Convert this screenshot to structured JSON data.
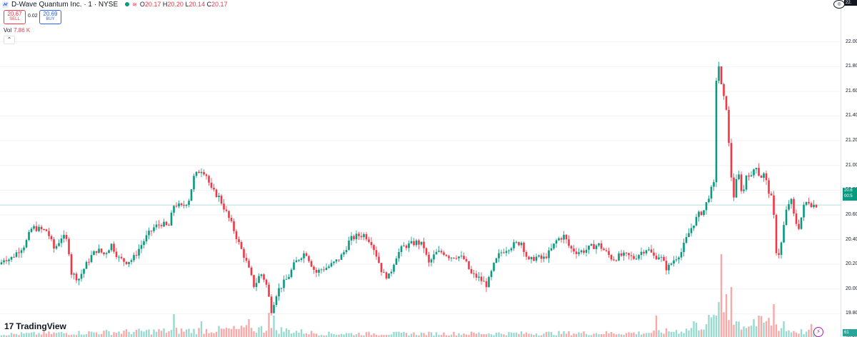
{
  "header": {
    "symbol_title": "D-Wave Quantum Inc. · 1 · NYSE",
    "ohlc": {
      "o_label": "O",
      "o_value": "20.17",
      "h_label": "H",
      "h_value": "20.20",
      "l_label": "L",
      "l_value": "20.14",
      "c_label": "C",
      "c_value": "20.17"
    }
  },
  "trade": {
    "sell_price": "20.67",
    "sell_label": "SELL",
    "spread": "0.02",
    "buy_price": "20.69",
    "buy_label": "BUY"
  },
  "volume": {
    "label": "Vol",
    "value": "7.86 K"
  },
  "collapse_glyph": "⌃",
  "logo": {
    "mark": "17",
    "text": "TradingView"
  },
  "axis": {
    "labels": [
      "22.00",
      "21.80",
      "21.60",
      "21.40",
      "21.20",
      "21.00",
      "20.80",
      "20.60",
      "20.40",
      "20.20",
      "20.00",
      "19.80",
      "19.60"
    ]
  },
  "last_price_tag": {
    "price": "20.6",
    "countdown": "00:5"
  },
  "volume_tag": "61",
  "top_right_tag": "22.",
  "colors": {
    "up": "#089981",
    "down": "#f23645",
    "vol_up": "#9ad9cf",
    "vol_down": "#f7a9a8",
    "grid": "#f0f3fa",
    "price_line": "#b2dfdb"
  },
  "chart_data": {
    "type": "candlestick",
    "ylim": [
      19.6,
      22.05
    ],
    "last_price": 20.68,
    "close_path": [
      [
        0,
        20.2
      ],
      [
        6,
        20.25
      ],
      [
        14,
        20.24
      ],
      [
        24,
        20.3
      ],
      [
        35,
        20.36
      ],
      [
        45,
        20.5
      ],
      [
        57,
        20.48
      ],
      [
        66,
        20.47
      ],
      [
        76,
        20.32
      ],
      [
        87,
        20.43
      ],
      [
        95,
        20.38
      ],
      [
        100,
        20.13
      ],
      [
        110,
        20.08
      ],
      [
        118,
        20.17
      ],
      [
        127,
        20.26
      ],
      [
        136,
        20.32
      ],
      [
        146,
        20.28
      ],
      [
        156,
        20.36
      ],
      [
        166,
        20.25
      ],
      [
        176,
        20.22
      ],
      [
        186,
        20.24
      ],
      [
        196,
        20.34
      ],
      [
        206,
        20.43
      ],
      [
        216,
        20.5
      ],
      [
        226,
        20.53
      ],
      [
        236,
        20.5
      ],
      [
        244,
        20.69
      ],
      [
        255,
        20.66
      ],
      [
        265,
        20.73
      ],
      [
        271,
        20.9
      ],
      [
        281,
        20.97
      ],
      [
        288,
        20.94
      ],
      [
        296,
        20.8
      ],
      [
        306,
        20.75
      ],
      [
        316,
        20.63
      ],
      [
        326,
        20.5
      ],
      [
        335,
        20.36
      ],
      [
        343,
        20.25
      ],
      [
        350,
        20.13
      ],
      [
        356,
        20.02
      ],
      [
        365,
        20.13
      ],
      [
        372,
        20.06
      ],
      [
        380,
        19.83
      ],
      [
        388,
        19.98
      ],
      [
        396,
        20.04
      ],
      [
        404,
        20.1
      ],
      [
        412,
        20.2
      ],
      [
        420,
        20.26
      ],
      [
        428,
        20.3
      ],
      [
        436,
        20.2
      ],
      [
        442,
        20.13
      ],
      [
        450,
        20.16
      ],
      [
        460,
        20.18
      ],
      [
        470,
        20.22
      ],
      [
        480,
        20.28
      ],
      [
        490,
        20.4
      ],
      [
        500,
        20.43
      ],
      [
        510,
        20.44
      ],
      [
        520,
        20.38
      ],
      [
        528,
        20.26
      ],
      [
        536,
        20.12
      ],
      [
        545,
        20.1
      ],
      [
        554,
        20.26
      ],
      [
        564,
        20.34
      ],
      [
        574,
        20.36
      ],
      [
        584,
        20.38
      ],
      [
        593,
        20.35
      ],
      [
        600,
        20.2
      ],
      [
        610,
        20.29
      ],
      [
        620,
        20.3
      ],
      [
        630,
        20.26
      ],
      [
        640,
        20.27
      ],
      [
        650,
        20.24
      ],
      [
        660,
        20.12
      ],
      [
        670,
        20.09
      ],
      [
        682,
        20.03
      ],
      [
        692,
        20.2
      ],
      [
        700,
        20.29
      ],
      [
        710,
        20.33
      ],
      [
        720,
        20.36
      ],
      [
        730,
        20.38
      ],
      [
        740,
        20.22
      ],
      [
        750,
        20.26
      ],
      [
        760,
        20.24
      ],
      [
        770,
        20.3
      ],
      [
        780,
        20.4
      ],
      [
        790,
        20.43
      ],
      [
        798,
        20.33
      ],
      [
        808,
        20.3
      ],
      [
        818,
        20.31
      ],
      [
        828,
        20.34
      ],
      [
        838,
        20.36
      ],
      [
        848,
        20.3
      ],
      [
        858,
        20.24
      ],
      [
        868,
        20.27
      ],
      [
        878,
        20.27
      ],
      [
        888,
        20.25
      ],
      [
        898,
        20.3
      ],
      [
        906,
        20.33
      ],
      [
        916,
        20.26
      ],
      [
        924,
        20.27
      ],
      [
        934,
        20.16
      ],
      [
        944,
        20.24
      ],
      [
        954,
        20.3
      ],
      [
        962,
        20.42
      ],
      [
        970,
        20.52
      ],
      [
        978,
        20.6
      ],
      [
        986,
        20.64
      ],
      [
        994,
        20.78
      ],
      [
        1000,
        20.85
      ],
      [
        1004,
        21.98
      ],
      [
        1008,
        21.7
      ],
      [
        1013,
        21.55
      ],
      [
        1018,
        21.45
      ],
      [
        1022,
        21.0
      ],
      [
        1028,
        20.73
      ],
      [
        1033,
        20.96
      ],
      [
        1040,
        20.75
      ],
      [
        1046,
        20.96
      ],
      [
        1052,
        20.9
      ],
      [
        1058,
        21.02
      ],
      [
        1064,
        20.9
      ],
      [
        1070,
        20.93
      ],
      [
        1076,
        20.8
      ],
      [
        1082,
        20.7
      ],
      [
        1088,
        20.23
      ],
      [
        1094,
        20.37
      ],
      [
        1100,
        20.61
      ],
      [
        1107,
        20.74
      ],
      [
        1113,
        20.55
      ],
      [
        1119,
        20.5
      ],
      [
        1125,
        20.66
      ],
      [
        1131,
        20.72
      ],
      [
        1137,
        20.68
      ],
      [
        1143,
        20.68
      ]
    ],
    "volume_path": [
      [
        0,
        4
      ],
      [
        100,
        6
      ],
      [
        240,
        9
      ],
      [
        285,
        10
      ],
      [
        378,
        12
      ],
      [
        450,
        5
      ],
      [
        600,
        5
      ],
      [
        900,
        6
      ],
      [
        960,
        10
      ],
      [
        1000,
        25
      ],
      [
        1012,
        40
      ],
      [
        1020,
        28
      ],
      [
        1040,
        18
      ],
      [
        1082,
        22
      ],
      [
        1100,
        10
      ],
      [
        1143,
        6
      ]
    ],
    "volume_spikes": [
      [
        242,
        32
      ],
      [
        281,
        22
      ],
      [
        350,
        25
      ],
      [
        376,
        34
      ],
      [
        382,
        30
      ],
      [
        918,
        30
      ],
      [
        972,
        22
      ],
      [
        1011,
        116
      ],
      [
        1017,
        60
      ],
      [
        1025,
        70
      ],
      [
        1002,
        30
      ],
      [
        1055,
        25
      ],
      [
        1084,
        46
      ],
      [
        1096,
        22
      ],
      [
        1136,
        18
      ]
    ]
  }
}
